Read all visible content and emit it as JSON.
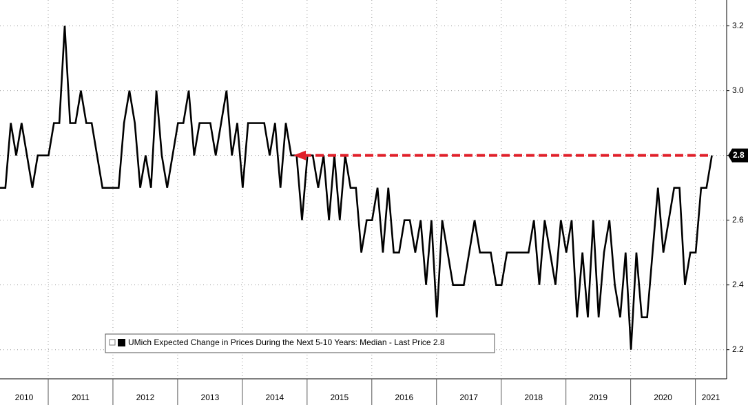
{
  "chart_data": {
    "type": "line",
    "series": [
      {
        "name": "UMich Expected Change in Prices During the Next 5-10 Years: Median - Last Price 2.8",
        "color": "#000000",
        "values": [
          2.7,
          2.7,
          2.9,
          2.8,
          2.9,
          2.8,
          2.7,
          2.8,
          2.8,
          2.8,
          2.9,
          2.9,
          3.2,
          2.9,
          2.9,
          3.0,
          2.9,
          2.9,
          2.8,
          2.7,
          2.7,
          2.7,
          2.7,
          2.9,
          3.0,
          2.9,
          2.7,
          2.8,
          2.7,
          3.0,
          2.8,
          2.7,
          2.8,
          2.9,
          2.9,
          3.0,
          2.8,
          2.9,
          2.9,
          2.9,
          2.8,
          2.9,
          3.0,
          2.8,
          2.9,
          2.7,
          2.9,
          2.9,
          2.9,
          2.9,
          2.8,
          2.9,
          2.7,
          2.9,
          2.8,
          2.8,
          2.6,
          2.8,
          2.8,
          2.7,
          2.8,
          2.6,
          2.8,
          2.6,
          2.8,
          2.7,
          2.7,
          2.5,
          2.6,
          2.6,
          2.7,
          2.5,
          2.7,
          2.5,
          2.5,
          2.6,
          2.6,
          2.5,
          2.6,
          2.4,
          2.6,
          2.3,
          2.6,
          2.5,
          2.4,
          2.4,
          2.4,
          2.5,
          2.6,
          2.5,
          2.5,
          2.5,
          2.4,
          2.4,
          2.5,
          2.5,
          2.5,
          2.5,
          2.5,
          2.6,
          2.4,
          2.6,
          2.5,
          2.4,
          2.6,
          2.5,
          2.6,
          2.3,
          2.5,
          2.3,
          2.6,
          2.3,
          2.5,
          2.6,
          2.4,
          2.3,
          2.5,
          2.2,
          2.5,
          2.3,
          2.3,
          2.5,
          2.7,
          2.5,
          2.6,
          2.7,
          2.7,
          2.4,
          2.5,
          2.5,
          2.7,
          2.7,
          2.8
        ]
      }
    ],
    "year_labels": [
      "2010",
      "2011",
      "2012",
      "2013",
      "2014",
      "2015",
      "2016",
      "2017",
      "2018",
      "2019",
      "2020",
      "2021"
    ],
    "ylim": [
      2.11,
      3.28
    ],
    "yticks": [
      2.2,
      2.4,
      2.6,
      2.8,
      {
        "value": 3,
        "label": "3.0"
      },
      3.2
    ],
    "grid": true,
    "annotation_color": "#e0202a"
  }
}
